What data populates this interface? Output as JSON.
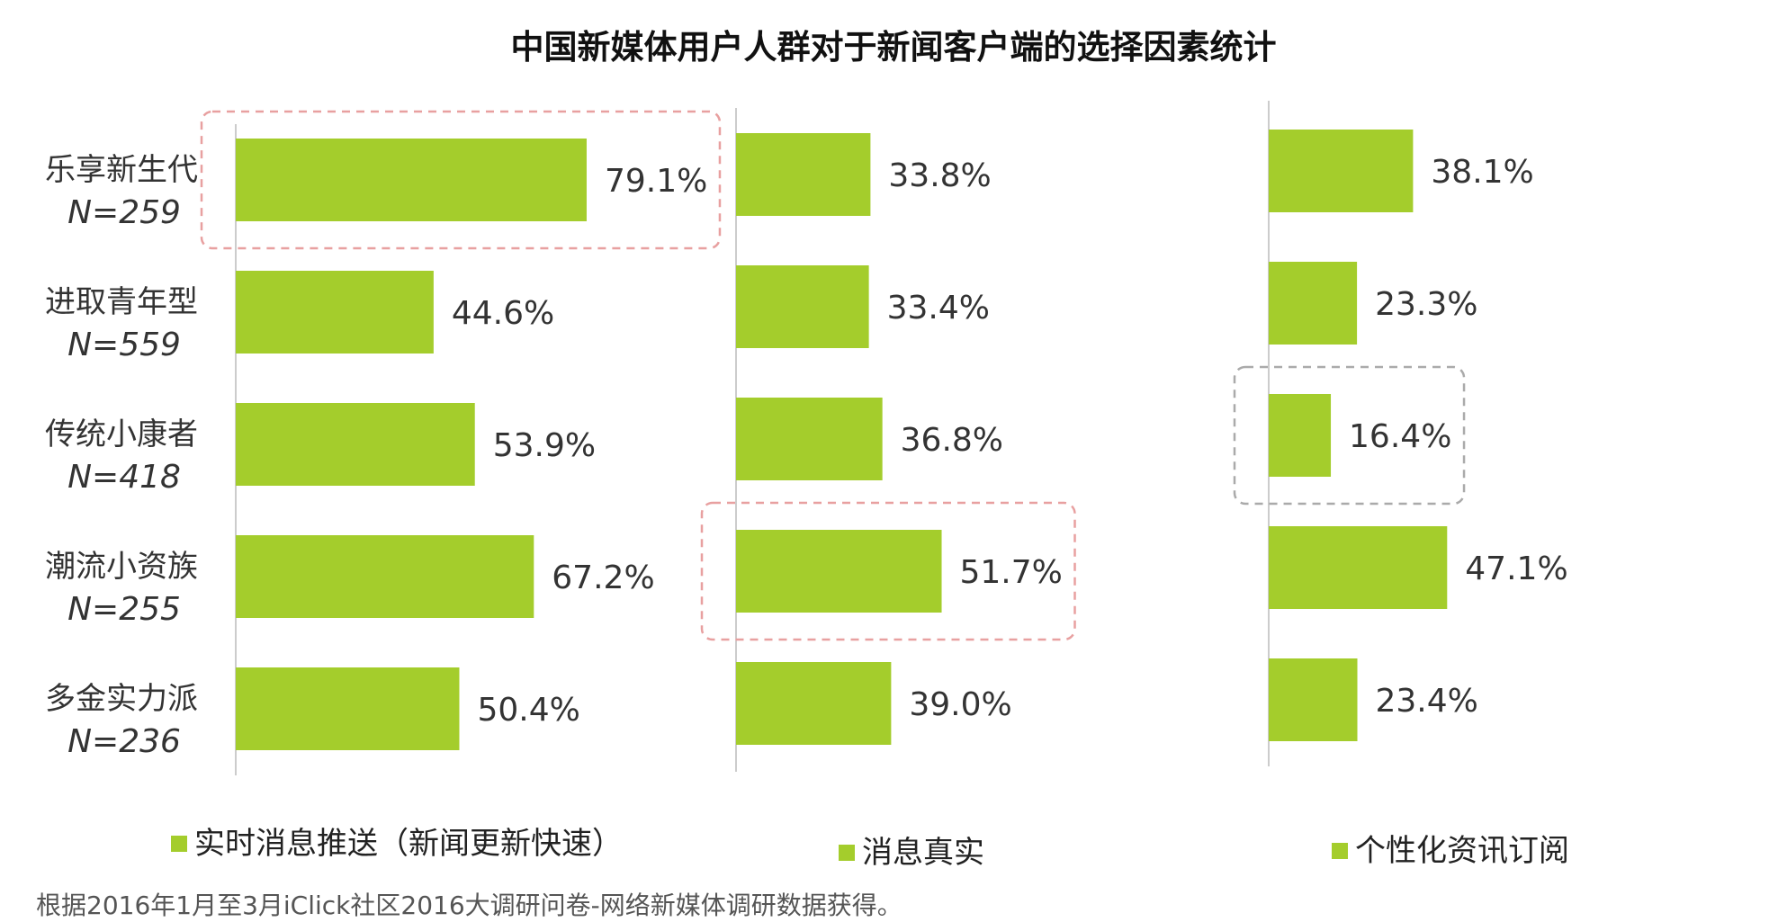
{
  "chart_data": {
    "type": "bar",
    "orientation": "horizontal",
    "title": "中国新媒体用户人群对于新闻客户端的选择因素统计",
    "categories": [
      {
        "name": "乐享新生代",
        "n": "N=259"
      },
      {
        "name": "进取青年型",
        "n": "N=559"
      },
      {
        "name": "传统小康者",
        "n": "N=418"
      },
      {
        "name": "潮流小资族",
        "n": "N=255"
      },
      {
        "name": "多金实力派",
        "n": "N=236"
      }
    ],
    "series": [
      {
        "name": "实时消息推送（新闻更新快速）",
        "values": [
          79.1,
          44.6,
          53.9,
          67.2,
          50.4
        ],
        "labels": [
          "79.1%",
          "44.6%",
          "53.9%",
          "67.2%",
          "50.4%"
        ],
        "highlight_index": 0,
        "highlight_color": "#e8a0a0"
      },
      {
        "name": "消息真实",
        "values": [
          33.8,
          33.4,
          36.8,
          51.7,
          39.0
        ],
        "labels": [
          "33.8%",
          "33.4%",
          "36.8%",
          "51.7%",
          "39.0%"
        ],
        "highlight_index": 3,
        "highlight_color": "#e8a0a0"
      },
      {
        "name": "个性化资讯订阅",
        "values": [
          38.1,
          23.3,
          16.4,
          47.1,
          23.4
        ],
        "labels": [
          "38.1%",
          "23.3%",
          "16.4%",
          "47.1%",
          "23.4%"
        ],
        "highlight_index": 2,
        "highlight_color": "#aaaaaa"
      }
    ],
    "bar_color": "#a4cd2c",
    "grid": false,
    "legend_position": "bottom"
  },
  "source": "根据2016年1月至3月iClick社区2016大调研问卷-网络新媒体调研数据获得。"
}
